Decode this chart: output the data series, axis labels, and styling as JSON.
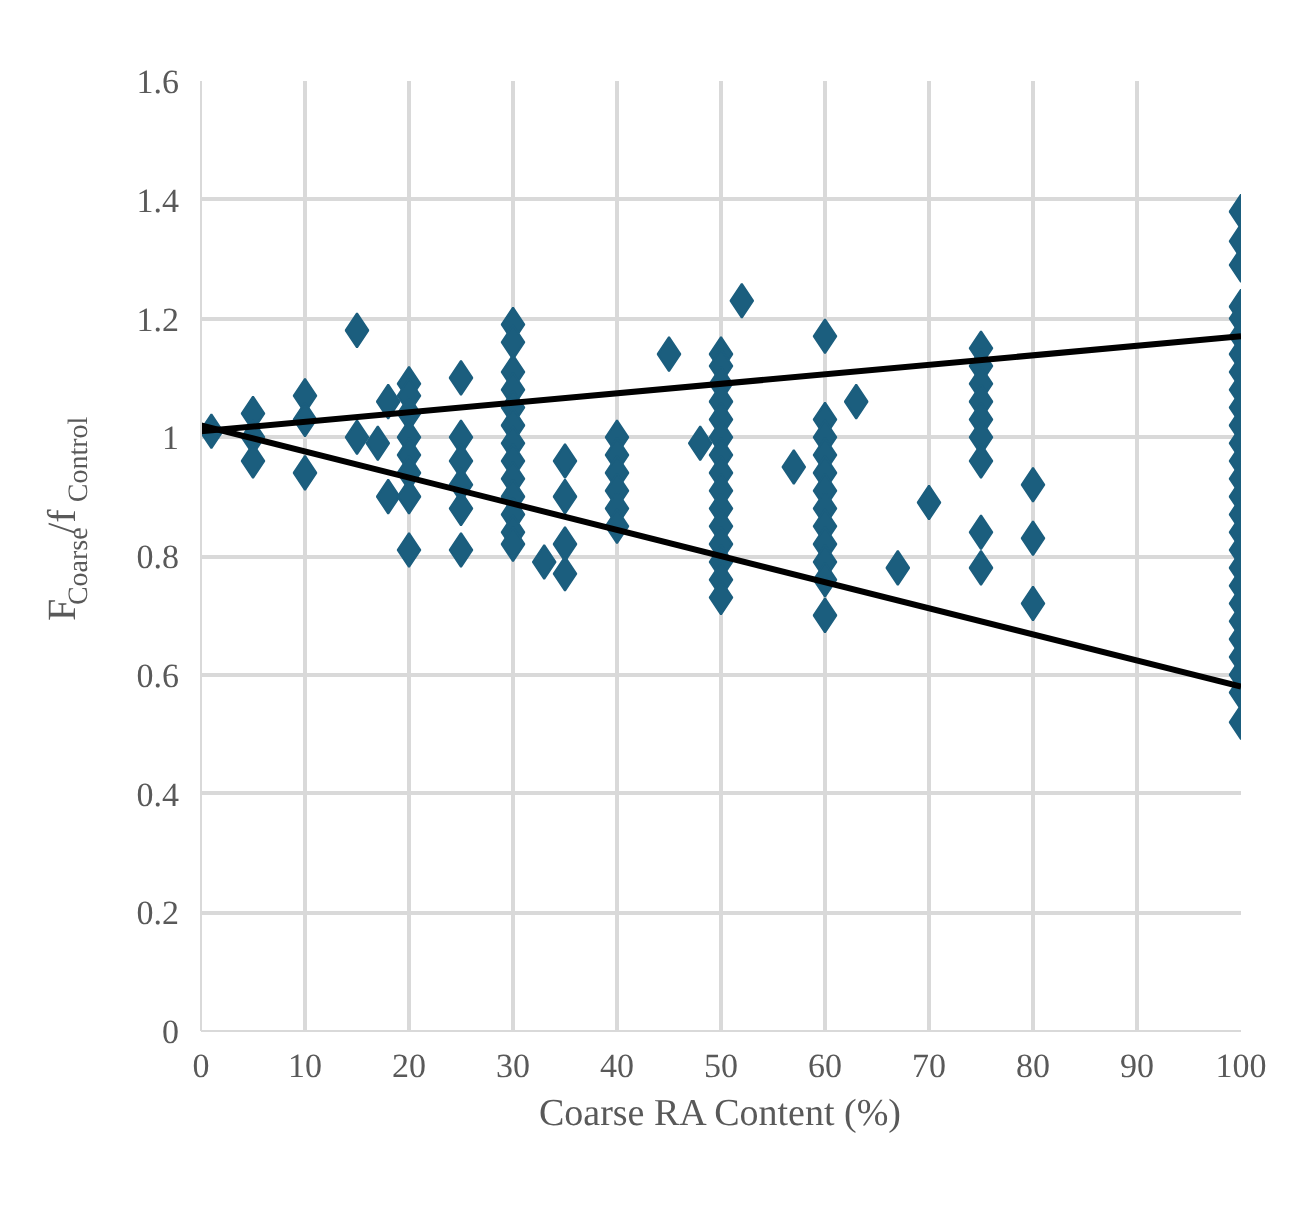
{
  "chart_data": {
    "type": "scatter",
    "xlabel": "Coarse RA Content (%)",
    "ylabel": "F$_{Coarse}$/f$_{Control}$",
    "xlim": [
      0,
      100
    ],
    "ylim": [
      0,
      1.6
    ],
    "xticks": [
      0,
      10,
      20,
      30,
      40,
      50,
      60,
      70,
      80,
      90,
      100
    ],
    "yticks": [
      0,
      0.2,
      0.4,
      0.6,
      0.8,
      1,
      1.2,
      1.4,
      1.6
    ],
    "grid": true,
    "series": [
      {
        "color": "#1b5e7e",
        "marker": "diamond",
        "x": [
          1,
          5,
          5,
          5,
          10,
          10,
          10,
          15,
          15,
          17,
          18,
          18,
          20,
          20,
          20,
          20,
          20,
          20,
          20,
          20,
          25,
          25,
          25,
          25,
          25,
          25,
          30,
          30,
          30,
          30,
          30,
          30,
          30,
          30,
          30,
          30,
          30,
          30,
          30,
          33,
          35,
          35,
          35,
          35,
          40,
          40,
          40,
          40,
          40,
          40,
          45,
          48,
          50,
          50,
          50,
          50,
          50,
          50,
          50,
          50,
          50,
          50,
          50,
          50,
          50,
          50,
          50,
          52,
          57,
          60,
          60,
          60,
          60,
          60,
          60,
          60,
          60,
          60,
          60,
          60,
          60,
          63,
          67,
          70,
          75,
          75,
          75,
          75,
          75,
          75,
          75,
          75,
          75,
          80,
          80,
          80,
          100,
          100,
          100,
          100,
          100,
          100,
          100,
          100,
          100,
          100,
          100,
          100,
          100,
          100,
          100,
          100,
          100,
          100,
          100,
          100,
          100,
          100,
          100,
          100,
          100,
          100,
          100
        ],
        "values": [
          1.01,
          1.04,
          1.0,
          0.96,
          1.07,
          1.03,
          0.94,
          1.18,
          1.0,
          0.99,
          1.06,
          0.9,
          1.09,
          1.07,
          1.04,
          1.0,
          0.97,
          0.94,
          0.9,
          0.81,
          1.1,
          1.0,
          0.96,
          0.92,
          0.88,
          0.81,
          1.19,
          1.16,
          1.11,
          1.08,
          1.05,
          1.02,
          0.99,
          0.96,
          0.93,
          0.9,
          0.87,
          0.84,
          0.82,
          0.79,
          0.96,
          0.9,
          0.82,
          0.77,
          1.0,
          0.97,
          0.94,
          0.91,
          0.88,
          0.85,
          1.14,
          0.99,
          1.14,
          1.12,
          1.09,
          1.06,
          1.03,
          1.0,
          0.97,
          0.94,
          0.91,
          0.88,
          0.85,
          0.82,
          0.79,
          0.76,
          0.73,
          1.23,
          0.95,
          1.17,
          1.03,
          1.0,
          0.97,
          0.94,
          0.91,
          0.88,
          0.85,
          0.82,
          0.79,
          0.76,
          0.7,
          1.06,
          0.78,
          0.89,
          1.15,
          1.12,
          1.09,
          1.06,
          1.03,
          1.0,
          0.96,
          0.84,
          0.78,
          0.92,
          0.83,
          0.72,
          1.38,
          1.33,
          1.29,
          1.22,
          1.2,
          1.17,
          1.14,
          1.11,
          1.08,
          1.05,
          1.02,
          0.99,
          0.96,
          0.93,
          0.9,
          0.87,
          0.84,
          0.81,
          0.78,
          0.75,
          0.72,
          0.69,
          0.66,
          0.63,
          0.6,
          0.57,
          0.52
        ]
      },
      {
        "color": "#000000",
        "type": "line",
        "x": [
          0,
          100
        ],
        "values": [
          1.01,
          1.17
        ]
      },
      {
        "color": "#000000",
        "type": "line",
        "x": [
          0,
          100
        ],
        "values": [
          1.02,
          0.58
        ]
      }
    ]
  }
}
